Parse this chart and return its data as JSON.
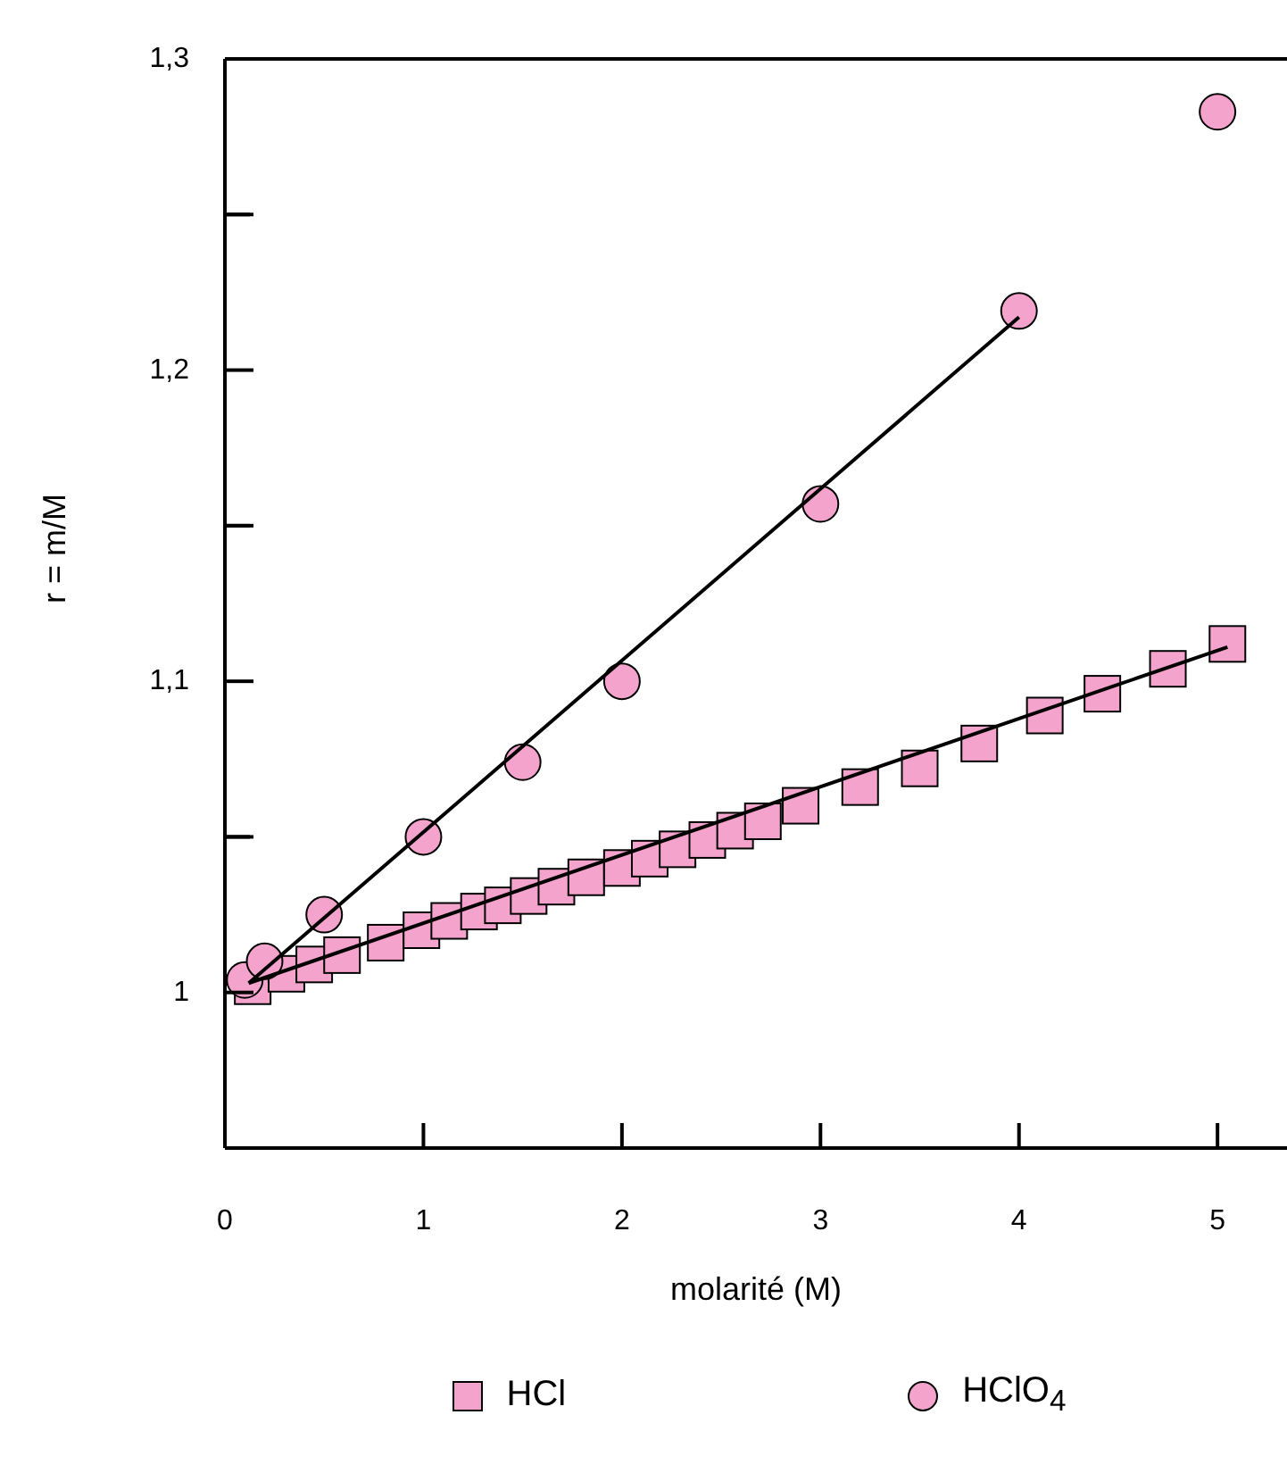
{
  "chart_data": {
    "type": "scatter",
    "xlabel": "molarité (M)",
    "ylabel": "r = m/M",
    "xlim": [
      0,
      5.35
    ],
    "xticks": [
      0,
      1,
      2,
      3,
      4,
      5
    ],
    "ylim": [
      0.95,
      1.3
    ],
    "yticks": [
      {
        "value": 1,
        "label": "1"
      },
      {
        "value": 1.05,
        "label": null
      },
      {
        "value": 1.1,
        "label": "1,1"
      },
      {
        "value": 1.15,
        "label": null
      },
      {
        "value": 1.2,
        "label": "1,2"
      },
      {
        "value": 1.25,
        "label": null
      },
      {
        "value": 1.3,
        "label": "1,3"
      }
    ],
    "grid": false,
    "legend": "bottom",
    "series": [
      {
        "name": "HCl",
        "marker": "square",
        "color": "#f4a3cc",
        "x": [
          0.14,
          0.31,
          0.45,
          0.59,
          0.81,
          0.99,
          1.13,
          1.28,
          1.4,
          1.53,
          1.67,
          1.82,
          2.0,
          2.14,
          2.28,
          2.43,
          2.57,
          2.71,
          2.9,
          3.2,
          3.5,
          3.8,
          4.13,
          4.42,
          4.75,
          5.05
        ],
        "values": [
          1.002,
          1.006,
          1.009,
          1.012,
          1.016,
          1.02,
          1.023,
          1.026,
          1.028,
          1.031,
          1.034,
          1.037,
          1.04,
          1.043,
          1.046,
          1.049,
          1.052,
          1.055,
          1.06,
          1.066,
          1.072,
          1.08,
          1.089,
          1.096,
          1.104,
          1.112
        ]
      },
      {
        "name": "HClO$_{4}$",
        "marker": "circle",
        "color": "#f4a3cc",
        "x": [
          0.1,
          0.2,
          0.5,
          1.0,
          1.5,
          2.0,
          3.0,
          4.0,
          5.0
        ],
        "values": [
          1.004,
          1.01,
          1.025,
          1.05,
          1.074,
          1.1,
          1.157,
          1.219,
          1.283
        ]
      },
      {
        "type": "line",
        "color": "#000000",
        "x": [
          0.12,
          4.0
        ],
        "values": [
          1.003,
          1.217
        ]
      },
      {
        "type": "line",
        "color": "#000000",
        "x": [
          0.12,
          5.05
        ],
        "values": [
          1.003,
          1.111
        ]
      }
    ]
  }
}
